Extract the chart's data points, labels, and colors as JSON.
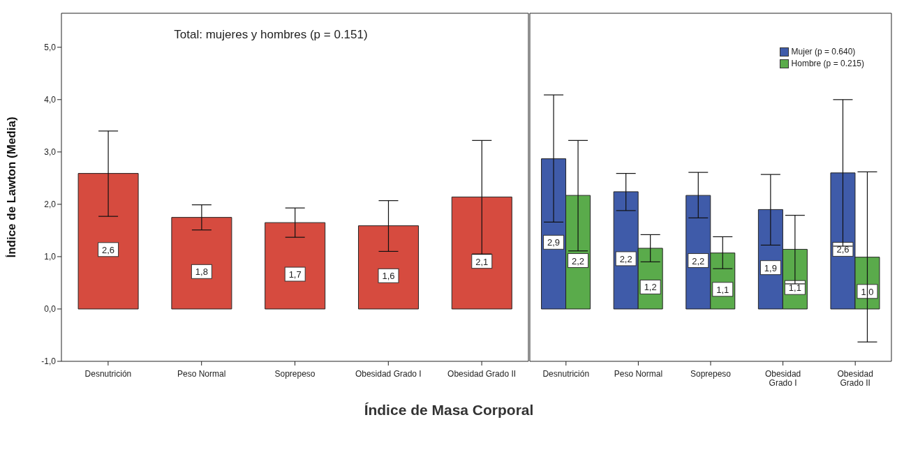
{
  "chart_data": [
    {
      "type": "bar",
      "title": "Total: mujeres y hombres (p = 0.151)",
      "ylabel": "Índice de Lawton (Media)",
      "xlabel": "Índice de Masa Corporal",
      "categories": [
        "Desnutrición",
        "Peso Normal",
        "Soprepeso",
        "Obesidad Grado I",
        "Obesidad Grado II"
      ],
      "values": [
        2.59,
        1.75,
        1.65,
        1.59,
        2.14
      ],
      "color": "#d64b3f",
      "errors": [
        [
          1.77,
          3.4
        ],
        [
          1.51,
          1.99
        ],
        [
          1.37,
          1.93
        ],
        [
          1.1,
          2.07
        ],
        [
          1.05,
          3.22
        ]
      ],
      "value_labels": [
        "2,6",
        "1,8",
        "1,7",
        "1,6",
        "2,1"
      ],
      "ylim": [
        -1,
        5.65
      ],
      "yticks": [
        {
          "value": -1,
          "label": "-1,0"
        },
        {
          "value": 0,
          "label": "0,0"
        },
        {
          "value": 1,
          "label": "1,0"
        },
        {
          "value": 2,
          "label": "2,0"
        },
        {
          "value": 3,
          "label": "3,0"
        },
        {
          "value": 4,
          "label": "4,0"
        },
        {
          "value": 5,
          "label": "5,0"
        }
      ],
      "grid": false,
      "legend": false
    },
    {
      "type": "bar",
      "categories": [
        "Desnutrición",
        "Peso Normal",
        "Soprepeso",
        "Obesidad Grado I",
        "Obesidad Grado II"
      ],
      "series": [
        {
          "name": "Mujer (p = 0.640)",
          "color": "#3f5ba9",
          "values": [
            2.87,
            2.24,
            2.17,
            1.9,
            2.6
          ],
          "errors": [
            [
              1.66,
              4.09
            ],
            [
              1.88,
              2.59
            ],
            [
              1.74,
              2.61
            ],
            [
              1.22,
              2.57
            ],
            [
              1.2,
              4.0
            ]
          ],
          "value_labels": [
            "2,9",
            "2,2",
            "2,2",
            "1,9",
            "2,6"
          ]
        },
        {
          "name": "Hombre (p = 0.215)",
          "color": "#5aab4b",
          "values": [
            2.17,
            1.16,
            1.07,
            1.14,
            0.99
          ],
          "errors": [
            [
              1.11,
              3.22
            ],
            [
              0.9,
              1.42
            ],
            [
              0.77,
              1.38
            ],
            [
              0.48,
              1.79
            ],
            [
              -0.63,
              2.62
            ]
          ],
          "value_labels": [
            "2,2",
            "1,2",
            "1,1",
            "1,1",
            "1,0"
          ]
        }
      ],
      "ylim": [
        -1,
        5.65
      ],
      "tick_labels": "x",
      "grid": false,
      "legend": "top right"
    }
  ]
}
